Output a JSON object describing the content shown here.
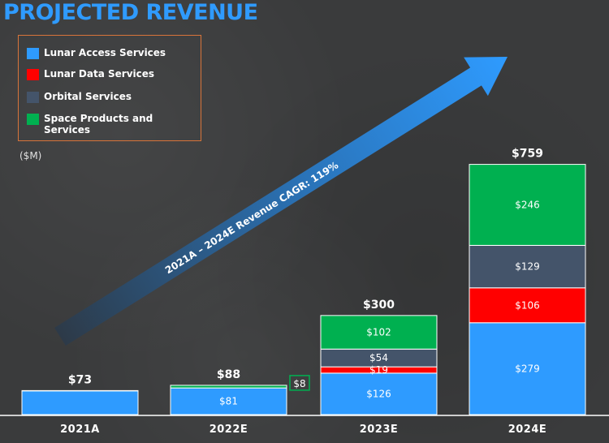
{
  "title": "PROJECTED REVENUE",
  "unit_label": "($M)",
  "arrow_text": "2021A – 2024E Revenue CAGR: 119%",
  "colors": {
    "title": "#2f9bff",
    "legend_border": "#d8743a",
    "background": "#3a3b3c"
  },
  "chart_data": {
    "type": "bar",
    "stacked": true,
    "categories": [
      "2021A",
      "2022E",
      "2023E",
      "2024E"
    ],
    "totals": [
      "$73",
      "$88",
      "$300",
      "$759"
    ],
    "total_values": [
      73,
      88,
      300,
      759
    ],
    "series": [
      {
        "name": "Lunar Access Services",
        "color": "#2e9bff",
        "values": [
          72,
          81,
          126,
          279
        ],
        "labels": [
          "",
          "$81",
          "$126",
          "$279"
        ]
      },
      {
        "name": "Lunar Data Services",
        "color": "#ff0000",
        "values": [
          0,
          0,
          19,
          106
        ],
        "labels": [
          "",
          "",
          "$19",
          "$106"
        ]
      },
      {
        "name": "Orbital Services",
        "color": "#44546a",
        "values": [
          0,
          0,
          54,
          129
        ],
        "labels": [
          "",
          "",
          "$54",
          "$129"
        ]
      },
      {
        "name": "Space Products and Services",
        "color": "#00b050",
        "values": [
          1,
          8,
          102,
          246
        ],
        "labels": [
          "",
          "$8",
          "$102",
          "$246"
        ]
      }
    ],
    "legend_placement": "top-left",
    "grid": false
  }
}
